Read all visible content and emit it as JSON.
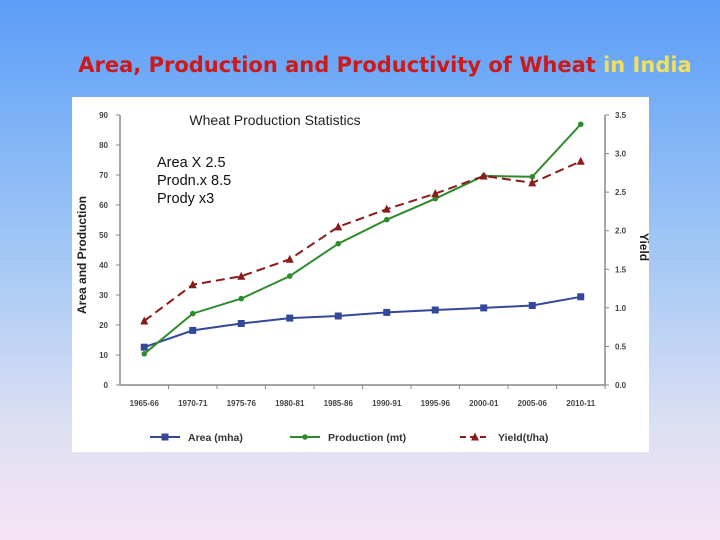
{
  "slide": {
    "title_part1": "Area, Production and Productivity of Wheat",
    "title_part2": "in India"
  },
  "note_lines": [
    "Area X 2.5",
    "Prodn.x 8.5",
    "Prody  x3"
  ],
  "chart_data": {
    "type": "line",
    "title": "Wheat Production Statistics",
    "ylabel_left": "Area and Production",
    "ylabel_right": "Yield",
    "categories": [
      "1965-66",
      "1970-71",
      "1975-76",
      "1980-81",
      "1985-86",
      "1990-91",
      "1995-96",
      "2000-01",
      "2005-06",
      "2010-11"
    ],
    "ylim_left": [
      0,
      90
    ],
    "yticks_left": [
      0,
      10,
      20,
      30,
      40,
      50,
      60,
      70,
      80,
      90
    ],
    "ylim_right": [
      0,
      3.5
    ],
    "yticks_right": [
      "0.0",
      "0.5",
      "1.0",
      "1.5",
      "2.0",
      "2.5",
      "3.0",
      "3.5"
    ],
    "grid": false,
    "legend_position": "bottom",
    "series": [
      {
        "name": "Area (mha)",
        "axis": "left",
        "color": "#34489a",
        "marker": "square",
        "dash": "solid",
        "values": [
          12.6,
          18.2,
          20.5,
          22.3,
          23.0,
          24.2,
          25.0,
          25.7,
          26.5,
          29.4
        ]
      },
      {
        "name": "Production (mt)",
        "axis": "left",
        "color": "#2e8b2e",
        "marker": "circle",
        "dash": "solid",
        "values": [
          10.4,
          23.8,
          28.8,
          36.3,
          47.1,
          55.1,
          62.1,
          69.7,
          69.4,
          86.9
        ]
      },
      {
        "name": "Yield(t/ha)",
        "axis": "right",
        "color": "#8b1a1a",
        "marker": "triangle",
        "dash": "dashed",
        "values": [
          0.83,
          1.3,
          1.41,
          1.63,
          2.05,
          2.28,
          2.48,
          2.71,
          2.62,
          2.9
        ]
      }
    ]
  }
}
